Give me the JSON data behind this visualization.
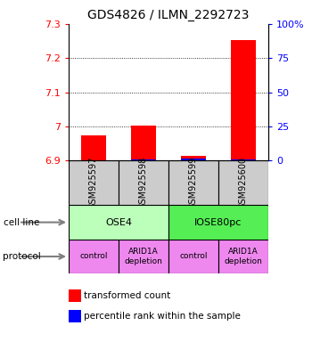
{
  "title": "GDS4826 / ILMN_2292723",
  "samples": [
    "GSM925597",
    "GSM925598",
    "GSM925599",
    "GSM925600"
  ],
  "red_values": [
    6.975,
    7.003,
    6.915,
    7.253
  ],
  "blue_values": [
    6.902,
    6.903,
    6.906,
    6.904
  ],
  "ylim": [
    6.9,
    7.3
  ],
  "yticks_left": [
    6.9,
    7.0,
    7.1,
    7.2,
    7.3
  ],
  "yticks_right": [
    0,
    25,
    50,
    75,
    100
  ],
  "ytick_labels_left": [
    "6.9",
    "7",
    "7.1",
    "7.2",
    "7.3"
  ],
  "ytick_labels_right": [
    "0",
    "25",
    "50",
    "75",
    "100%"
  ],
  "cell_line_labels": [
    "OSE4",
    "IOSE80pc"
  ],
  "cell_line_colors": [
    "#bbffbb",
    "#55ee55"
  ],
  "protocol_labels": [
    "control",
    "ARID1A\ndepletion",
    "control",
    "ARID1A\ndepletion"
  ],
  "protocol_color": "#ee88ee",
  "sample_box_color": "#cccccc",
  "bar_width": 0.5,
  "legend_red": "transformed count",
  "legend_blue": "percentile rank within the sample"
}
